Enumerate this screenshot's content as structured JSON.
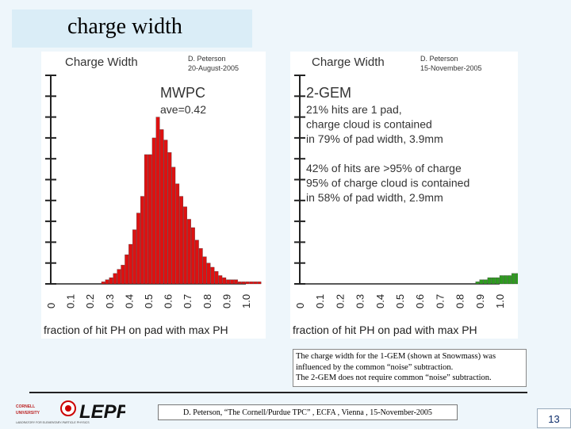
{
  "slide": {
    "title": "charge width",
    "caption_lines": [
      "The charge width for the 1-GEM (shown at Snowmass) was",
      " influenced by the common “noise” subtraction.",
      "The 2-GEM does not require common “noise” subtraction."
    ],
    "footer": "D. Peterson, “The Cornell/Purdue TPC” , ECFA , Vienna , 15-November-2005",
    "page_number": "13",
    "logo": {
      "lab": "LEPP",
      "university": "CORNELL UNIVERSITY",
      "subtitle": "LABORATORY FOR ELEMENTARY-PARTICLE PHYSICS"
    }
  },
  "chart_data": [
    {
      "type": "bar",
      "title": "Charge Width",
      "author": "D. Peterson",
      "date": "20-August-2005",
      "label": "MWPC",
      "annotation_lines": [
        "ave=0.42"
      ],
      "xlabel": "fraction of hit PH on pad with max PH",
      "x_ticks": [
        "0",
        "0.1",
        "0.2",
        "0.3",
        "0.4",
        "0.5",
        "0.6",
        "0.7",
        "0.8",
        "0.9",
        "1.0"
      ],
      "xlim": [
        0,
        1.0
      ],
      "bin_width": 0.02,
      "color": "#dd1111",
      "values": [
        0,
        0,
        0,
        0,
        0,
        0,
        0,
        0,
        0,
        0,
        0,
        0,
        0,
        1,
        2,
        3,
        5,
        7,
        9,
        14,
        19,
        26,
        34,
        42,
        62,
        62,
        70,
        80,
        74,
        69,
        63,
        56,
        48,
        42,
        37,
        31,
        27,
        21,
        17,
        13,
        10,
        8,
        6,
        4,
        3,
        2,
        2,
        2,
        1,
        1,
        1,
        1,
        1,
        1,
        0,
        0,
        0,
        0,
        0,
        0,
        0,
        0,
        0,
        0,
        0,
        0,
        0,
        0,
        0,
        0,
        0,
        0,
        0,
        0,
        0,
        0,
        0,
        0,
        0,
        0,
        0,
        0,
        0,
        0,
        0,
        0,
        0,
        0,
        0,
        0,
        0,
        0,
        0,
        0,
        0,
        0,
        0,
        0,
        0,
        0
      ],
      "ylim": [
        0,
        100
      ]
    },
    {
      "type": "bar",
      "title": "Charge Width",
      "author": "D. Peterson",
      "date": "15-November-2005",
      "label": "2-GEM",
      "annotation_lines": [
        "21% hits are 1 pad,",
        "charge cloud is contained",
        "in 79% of pad width,  3.9mm",
        "",
        "42% of hits are >95% of charge",
        "95% of charge cloud is contained",
        "in 58% of pad width,    2.9mm"
      ],
      "xlabel": "fraction of hit PH on pad with max PH",
      "x_ticks": [
        "0",
        "0.1",
        "0.2",
        "0.3",
        "0.4",
        "0.5",
        "0.6",
        "0.7",
        "0.8",
        "0.9",
        "1.0"
      ],
      "xlim": [
        0,
        1.0
      ],
      "bin_width": 0.02,
      "color": "#2e9b1f",
      "values": [
        0,
        0,
        0,
        0,
        0,
        0,
        0,
        0,
        0,
        0,
        0,
        0,
        0,
        0,
        0,
        0,
        0,
        0,
        0,
        0,
        0,
        0,
        0,
        0,
        0,
        0,
        0,
        0,
        0,
        0,
        0,
        0,
        0,
        0,
        0,
        0,
        0,
        0,
        0,
        0,
        0,
        0,
        0,
        0,
        0,
        0,
        0,
        0,
        0,
        0,
        0,
        0,
        0,
        0,
        0,
        0,
        0,
        0,
        0,
        0,
        0,
        0,
        0,
        0,
        0,
        0,
        0,
        0,
        0,
        0,
        0,
        0,
        0,
        0,
        0,
        0,
        0,
        0,
        0,
        0,
        0,
        0,
        0,
        0,
        0,
        0,
        0,
        0,
        0,
        0,
        0,
        0,
        0,
        0,
        0,
        0,
        0,
        0,
        0,
        0
      ],
      "ylim": [
        0,
        100
      ]
    }
  ]
}
